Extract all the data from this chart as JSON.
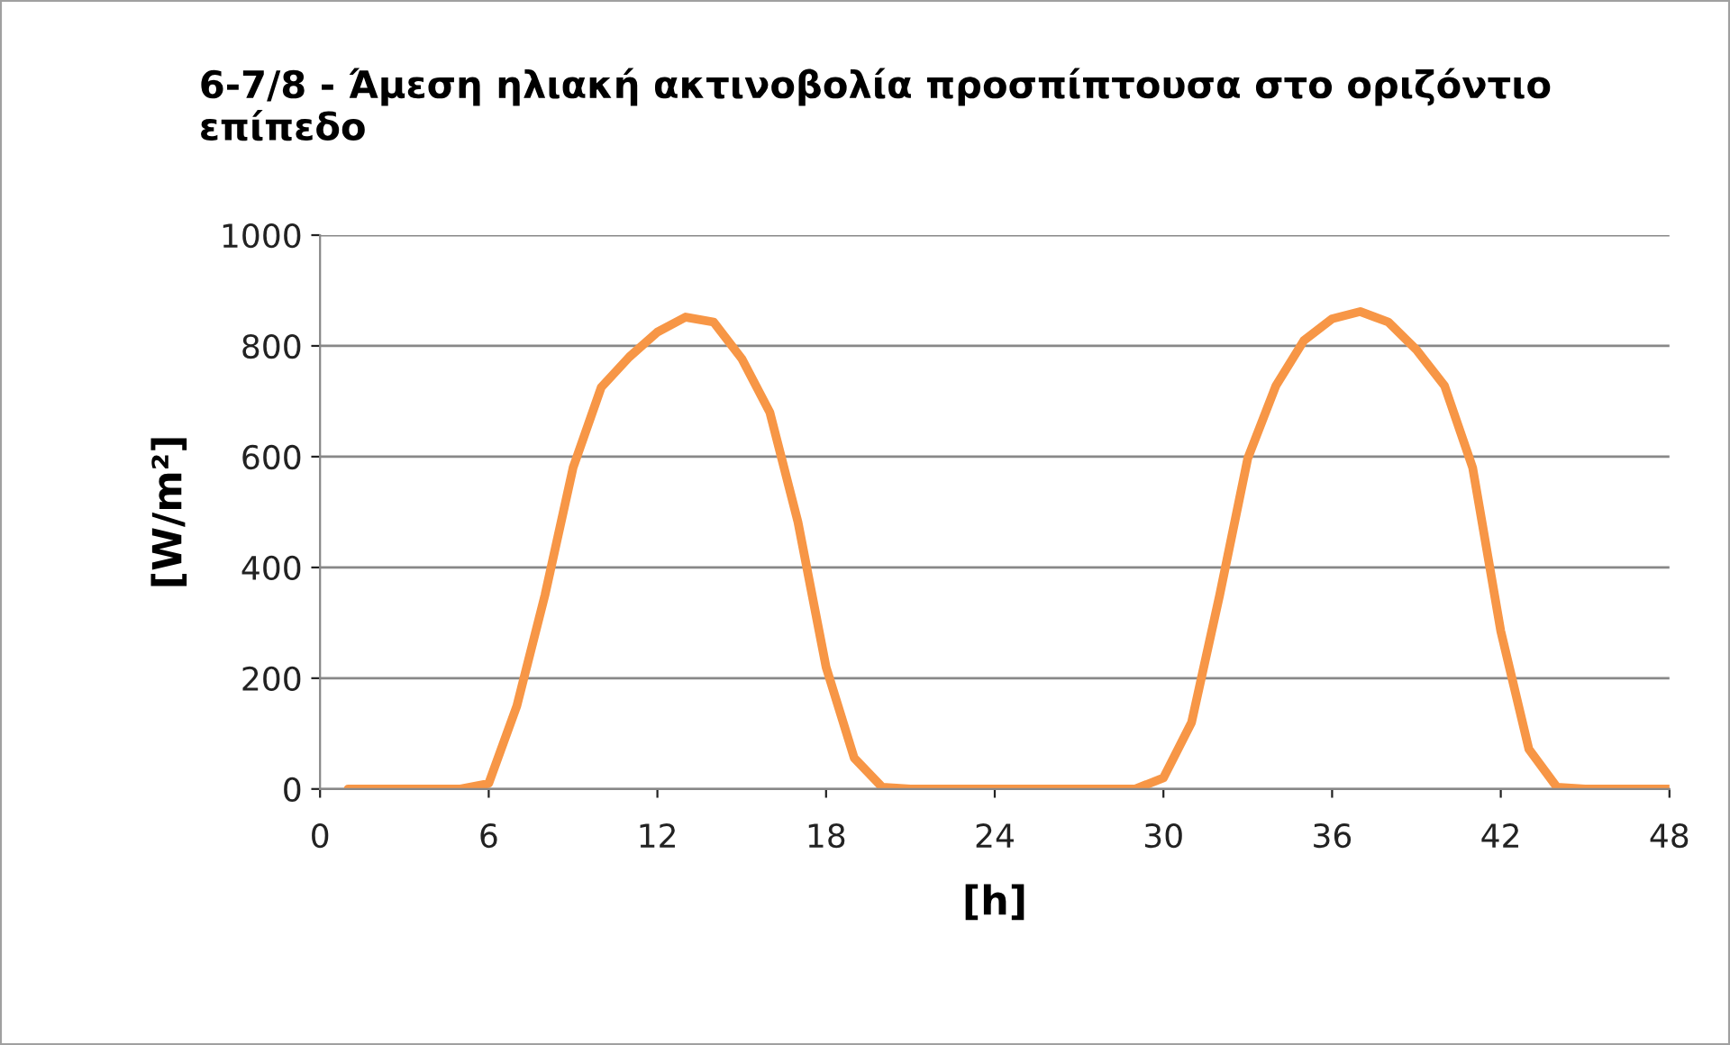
{
  "chart_data": {
    "type": "line",
    "title": "6-7/8 - Άμεση ηλιακή ακτινοβολία προσπίπτουσα στο οριζόντιο επίπεδο",
    "xlabel": "[h]",
    "ylabel": "[W/m²]",
    "x": [
      1,
      2,
      3,
      4,
      5,
      6,
      7,
      8,
      9,
      10,
      11,
      12,
      13,
      14,
      15,
      16,
      17,
      18,
      19,
      20,
      21,
      22,
      23,
      24,
      25,
      26,
      27,
      28,
      29,
      30,
      31,
      32,
      33,
      34,
      35,
      36,
      37,
      38,
      39,
      40,
      41,
      42,
      43,
      44,
      45,
      46,
      47,
      48
    ],
    "series": [
      {
        "color": "#f79646",
        "values": [
          0,
          0,
          0,
          0,
          0,
          10,
          150,
          350,
          580,
          725,
          780,
          825,
          852,
          843,
          777,
          680,
          482,
          220,
          56,
          3,
          0,
          0,
          0,
          0,
          0,
          0,
          0,
          0,
          0,
          20,
          120,
          350,
          597,
          728,
          810,
          849,
          862,
          843,
          793,
          728,
          580,
          285,
          72,
          3,
          0,
          0,
          0,
          0
        ]
      }
    ],
    "xlim": [
      0,
      48
    ],
    "xticks": [
      0,
      6,
      12,
      18,
      24,
      30,
      36,
      42,
      48
    ],
    "ylim": [
      0,
      1000
    ],
    "yticks": [
      0,
      200,
      400,
      600,
      800,
      1000
    ],
    "grid": "y",
    "legend": false,
    "marker": "none",
    "line_style": "solid"
  }
}
